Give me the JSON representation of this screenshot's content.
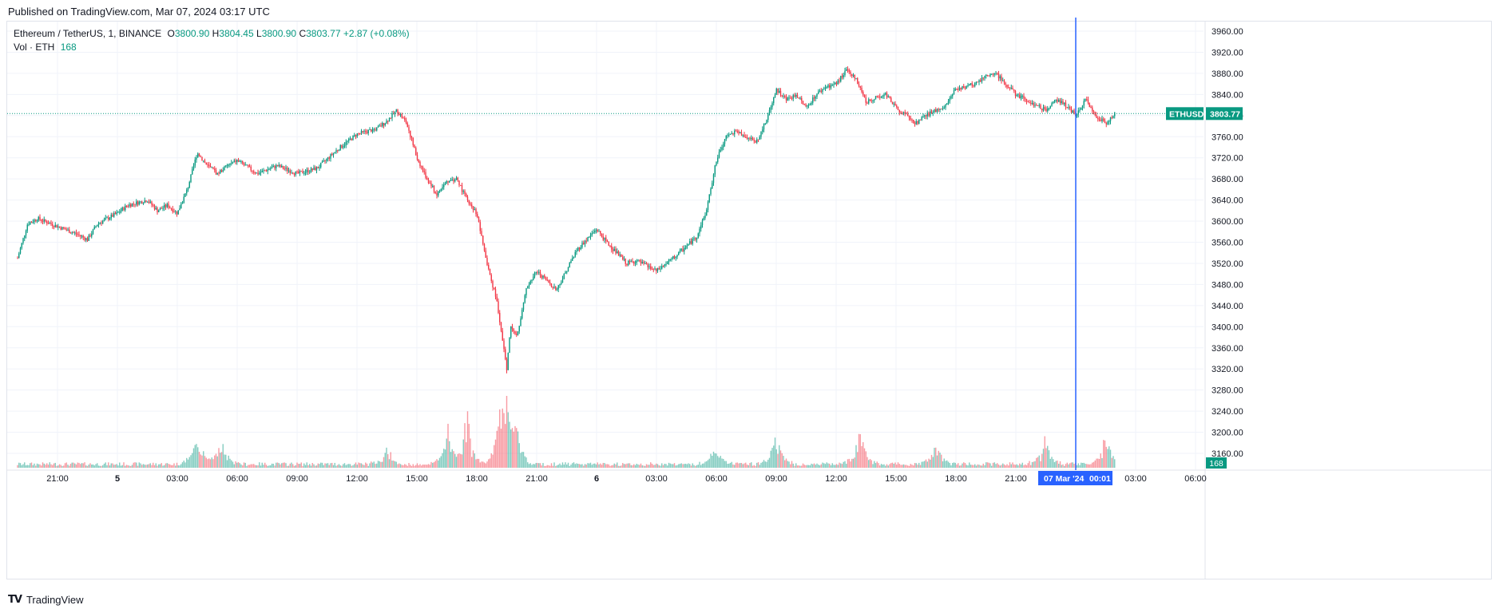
{
  "header": {
    "published": "Published on TradingView.com, Mar 07, 2024 03:17 UTC"
  },
  "legend": {
    "pair": "Ethereum / TetherUS, 1, BINANCE",
    "o_label": "O",
    "open": "3800.90",
    "h_label": "H",
    "high": "3804.45",
    "l_label": "L",
    "low": "3800.90",
    "c_label": "C",
    "close": "3803.77",
    "change": "+2.87 (+0.08%)",
    "vol_label": "Vol · ETH",
    "vol_value": "168"
  },
  "price_tag": {
    "symbol": "ETHUSDT",
    "price": "3803.77"
  },
  "volume_tag": "168",
  "crosshair_label": {
    "date": "07 Mar '24",
    "time": "00:01"
  },
  "footer": {
    "brand": "TradingView"
  },
  "colors": {
    "up": "#089981",
    "down": "#f23645",
    "crosshair": "#2962ff",
    "grid": "#f0f3fa",
    "text": "#131722"
  },
  "chart_data": {
    "type": "candlestick",
    "symbol": "ETHUSDT",
    "interval": "1",
    "exchange": "BINANCE",
    "ylim": [
      3120,
      3980
    ],
    "y_ticks": [
      "3960.00",
      "3920.00",
      "3880.00",
      "3840.00",
      "3800.00",
      "3760.00",
      "3720.00",
      "3680.00",
      "3640.00",
      "3600.00",
      "3560.00",
      "3520.00",
      "3480.00",
      "3440.00",
      "3400.00",
      "3360.00",
      "3320.00",
      "3280.00",
      "3240.00",
      "3200.00",
      "3160.00"
    ],
    "x_tick_labels": [
      "21:00",
      "5",
      "03:00",
      "06:00",
      "09:00",
      "12:00",
      "15:00",
      "18:00",
      "21:00",
      "6",
      "03:00",
      "06:00",
      "09:00",
      "12:00",
      "15:00",
      "18:00",
      "21:00",
      "03:00",
      "06:00"
    ],
    "x_tick_hours": [
      -3,
      0,
      3,
      6,
      9,
      12,
      15,
      18,
      21,
      24,
      27,
      30,
      33,
      36,
      39,
      42,
      45,
      51,
      54
    ],
    "time_range_hours": [
      -5.5,
      56
    ],
    "last_price": 3803.77,
    "price_path": {
      "hours": [
        -5.0,
        -4.5,
        -4.0,
        -3.0,
        -2.0,
        -1.5,
        -1.0,
        0.0,
        0.5,
        1.0,
        1.5,
        2.0,
        2.5,
        3.0,
        3.5,
        4.0,
        4.5,
        5.0,
        5.5,
        6.0,
        7.0,
        8.0,
        9.0,
        10.0,
        11.0,
        12.0,
        12.5,
        13.0,
        13.5,
        14.0,
        14.5,
        15.0,
        15.5,
        16.0,
        16.5,
        17.0,
        17.5,
        18.0,
        18.5,
        19.0,
        19.5,
        19.7,
        20.0,
        20.5,
        21.0,
        22.0,
        23.0,
        24.0,
        24.5,
        25.0,
        25.5,
        26.0,
        27.0,
        28.0,
        29.0,
        29.5,
        30.0,
        30.5,
        31.0,
        32.0,
        32.5,
        33.0,
        33.5,
        34.0,
        34.5,
        35.0,
        35.5,
        36.0,
        36.5,
        37.0,
        37.5,
        38.0,
        38.5,
        39.0,
        39.5,
        40.0,
        40.5,
        41.0,
        41.5,
        42.0,
        42.5,
        43.0,
        43.5,
        44.0,
        44.5,
        45.0,
        45.5,
        46.0,
        46.5,
        47.0,
        47.5,
        48.0,
        48.5,
        49.0,
        49.5,
        50.0
      ],
      "prices": [
        3530,
        3595,
        3605,
        3590,
        3575,
        3565,
        3595,
        3615,
        3630,
        3635,
        3640,
        3620,
        3630,
        3615,
        3660,
        3730,
        3705,
        3690,
        3705,
        3715,
        3690,
        3705,
        3690,
        3700,
        3735,
        3765,
        3770,
        3775,
        3790,
        3810,
        3785,
        3720,
        3680,
        3650,
        3675,
        3680,
        3640,
        3615,
        3520,
        3450,
        3320,
        3400,
        3380,
        3475,
        3505,
        3470,
        3545,
        3585,
        3560,
        3540,
        3520,
        3525,
        3505,
        3535,
        3570,
        3620,
        3715,
        3760,
        3770,
        3750,
        3790,
        3850,
        3830,
        3840,
        3815,
        3840,
        3855,
        3860,
        3885,
        3870,
        3825,
        3835,
        3840,
        3815,
        3800,
        3785,
        3800,
        3810,
        3820,
        3850,
        3855,
        3860,
        3875,
        3880,
        3860,
        3840,
        3830,
        3820,
        3810,
        3830,
        3820,
        3800,
        3830,
        3800,
        3785,
        3803.77
      ],
      "note": "approximate intraday close path read from the figure; hours relative to Mar 5 00:00 UTC"
    },
    "volume_spikes": [
      {
        "hour": 4.0,
        "value": 155
      },
      {
        "hour": 5.2,
        "value": 150
      },
      {
        "hour": 13.5,
        "value": 90
      },
      {
        "hour": 16.5,
        "value": 200
      },
      {
        "hour": 17.5,
        "value": 260
      },
      {
        "hour": 19.2,
        "value": 240
      },
      {
        "hour": 19.5,
        "value": 330
      },
      {
        "hour": 20.0,
        "value": 200
      },
      {
        "hour": 30.0,
        "value": 110
      },
      {
        "hour": 33.0,
        "value": 180
      },
      {
        "hour": 37.2,
        "value": 185
      },
      {
        "hour": 41.0,
        "value": 110
      },
      {
        "hour": 46.5,
        "value": 140
      },
      {
        "hour": 49.5,
        "value": 160
      }
    ]
  }
}
